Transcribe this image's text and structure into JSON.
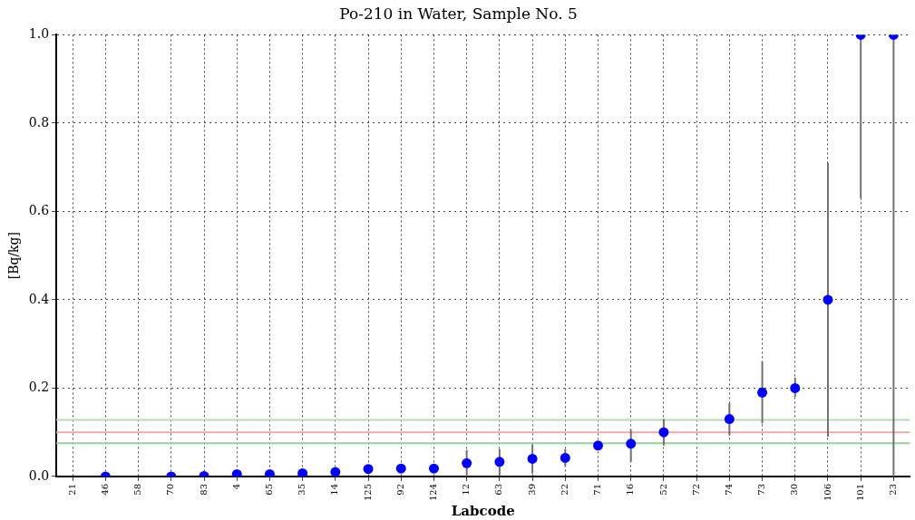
{
  "chart_data": {
    "type": "scatter",
    "title": "Po-210 in Water, Sample No. 5",
    "xlabel": "Labcode",
    "ylabel": "[Bq/kg]",
    "categories": [
      "21",
      "46",
      "58",
      "70",
      "83",
      "4",
      "65",
      "35",
      "14",
      "125",
      "92",
      "124",
      "12",
      "63",
      "39",
      "22",
      "71",
      "16",
      "52",
      "72",
      "74",
      "73",
      "30",
      "106",
      "101",
      "23"
    ],
    "series": [
      {
        "color": "#0000ff",
        "values": [
          null,
          0,
          null,
          0,
          0.001,
          0.005,
          0.005,
          0.007,
          0.01,
          0.017,
          0.018,
          0.018,
          0.03,
          0.033,
          0.04,
          0.042,
          0.07,
          0.074,
          0.1,
          null,
          0.13,
          0.19,
          0.2,
          0.4,
          1.0,
          1.0
        ],
        "errors": [
          null,
          null,
          null,
          null,
          null,
          null,
          null,
          null,
          null,
          null,
          null,
          null,
          [
            0,
            0.06
          ],
          [
            0.003,
            0.062
          ],
          [
            0.007,
            0.073
          ],
          [
            0.022,
            0.062
          ],
          [
            0.06,
            0.079
          ],
          [
            0.033,
            0.106
          ],
          [
            0.07,
            0.13
          ],
          null,
          [
            0.093,
            0.166
          ],
          [
            0.12,
            0.26
          ],
          [
            0.18,
            0.224
          ],
          [
            0.09,
            0.71
          ],
          [
            0.63,
            1.0
          ],
          [
            0,
            1.0
          ]
        ]
      }
    ],
    "ylim": [
      0,
      1.0
    ],
    "yticks": [
      {
        "value": 0,
        "label": "0.0"
      },
      {
        "value": 0.2,
        "label": "0.2"
      },
      {
        "value": 0.4,
        "label": "0.4"
      },
      {
        "value": 0.6,
        "label": "0.6"
      },
      {
        "value": 0.8,
        "label": "0.8"
      },
      {
        "value": 1.0,
        "label": "1.0"
      }
    ],
    "ref_lines": [
      {
        "axis": "y",
        "value": 0.128,
        "color": "#b5dcb5"
      },
      {
        "axis": "y",
        "value": 0.1,
        "color": "#f0a8a8"
      },
      {
        "axis": "y",
        "value": 0.075,
        "color": "#98d098"
      }
    ],
    "grid": true,
    "marker": "circle",
    "legend": false
  }
}
